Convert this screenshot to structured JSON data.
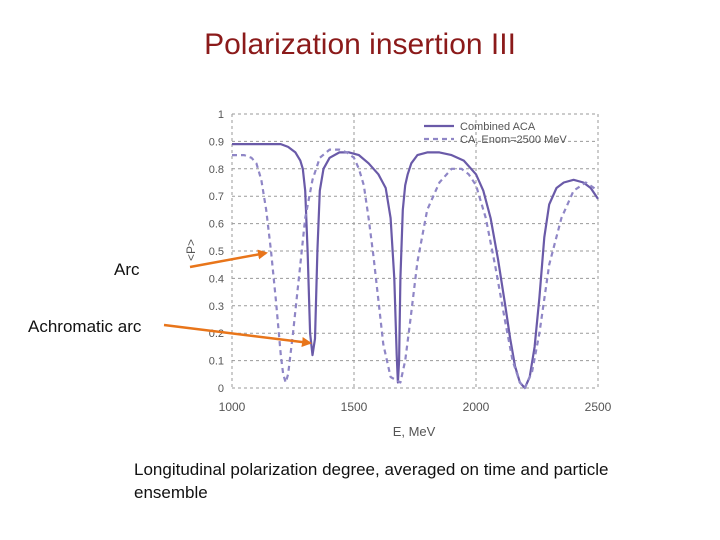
{
  "slide": {
    "title": "Polarization insertion III",
    "annotations": [
      "Arc",
      "Achromatic arc"
    ],
    "caption": "Longitudinal polarization degree, averaged on time and particle ensemble"
  },
  "colors": {
    "title": "#8b1a1a",
    "series_solid": "#6a5aa8",
    "series_dashed": "#8f86c6",
    "arrow": "#e8751a",
    "grid": "#9a9a9a"
  },
  "chart_data": {
    "type": "line",
    "title": "",
    "xlabel": "E, MeV",
    "ylabel": "<P>",
    "xlim": [
      1000,
      2500
    ],
    "ylim": [
      0,
      1
    ],
    "xticks": [
      "1000",
      "1500",
      "2000",
      "2500"
    ],
    "yticks": [
      "0",
      "0.1",
      "0.2",
      "0.3",
      "0.4",
      "0.5",
      "0.6",
      "0.7",
      "0.8",
      "0.9",
      "1"
    ],
    "grid": "dashed",
    "legend_position": "top-right",
    "series": [
      {
        "name": "Combined ACA",
        "style": "solid",
        "x": [
          1000,
          1150,
          1200,
          1230,
          1260,
          1280,
          1290,
          1300,
          1310,
          1320,
          1330,
          1340,
          1350,
          1360,
          1375,
          1400,
          1440,
          1480,
          1520,
          1560,
          1600,
          1630,
          1650,
          1665,
          1675,
          1680,
          1685,
          1690,
          1700,
          1710,
          1720,
          1735,
          1760,
          1800,
          1850,
          1900,
          1950,
          2000,
          2030,
          2060,
          2090,
          2120,
          2140,
          2160,
          2180,
          2200,
          2220,
          2240,
          2260,
          2280,
          2300,
          2330,
          2360,
          2400,
          2440,
          2470,
          2500
        ],
        "y": [
          0.89,
          0.89,
          0.89,
          0.88,
          0.86,
          0.83,
          0.8,
          0.72,
          0.5,
          0.2,
          0.12,
          0.18,
          0.5,
          0.72,
          0.8,
          0.84,
          0.86,
          0.86,
          0.85,
          0.82,
          0.78,
          0.73,
          0.62,
          0.4,
          0.12,
          0.02,
          0.1,
          0.4,
          0.65,
          0.74,
          0.78,
          0.82,
          0.85,
          0.86,
          0.86,
          0.85,
          0.83,
          0.78,
          0.72,
          0.62,
          0.47,
          0.3,
          0.18,
          0.08,
          0.02,
          0.0,
          0.04,
          0.15,
          0.33,
          0.55,
          0.67,
          0.73,
          0.75,
          0.76,
          0.75,
          0.73,
          0.69
        ]
      },
      {
        "name": "CA, Enom=2500 MeV",
        "style": "dashed",
        "x": [
          1000,
          1050,
          1080,
          1100,
          1120,
          1140,
          1160,
          1180,
          1200,
          1210,
          1220,
          1230,
          1250,
          1280,
          1300,
          1330,
          1360,
          1400,
          1440,
          1470,
          1500,
          1520,
          1540,
          1560,
          1580,
          1600,
          1620,
          1650,
          1690,
          1710,
          1730,
          1760,
          1800,
          1850,
          1900,
          1940,
          1970,
          2000,
          2040,
          2080,
          2120,
          2150,
          2180,
          2200,
          2230,
          2260,
          2300,
          2350,
          2400,
          2450,
          2500
        ],
        "y": [
          0.85,
          0.85,
          0.84,
          0.82,
          0.76,
          0.65,
          0.5,
          0.32,
          0.12,
          0.05,
          0.02,
          0.05,
          0.2,
          0.45,
          0.62,
          0.76,
          0.84,
          0.87,
          0.87,
          0.86,
          0.84,
          0.8,
          0.74,
          0.62,
          0.48,
          0.32,
          0.16,
          0.04,
          0.02,
          0.1,
          0.24,
          0.46,
          0.65,
          0.75,
          0.8,
          0.8,
          0.78,
          0.74,
          0.62,
          0.44,
          0.24,
          0.1,
          0.02,
          0.0,
          0.06,
          0.2,
          0.45,
          0.62,
          0.72,
          0.75,
          0.72
        ]
      }
    ]
  }
}
